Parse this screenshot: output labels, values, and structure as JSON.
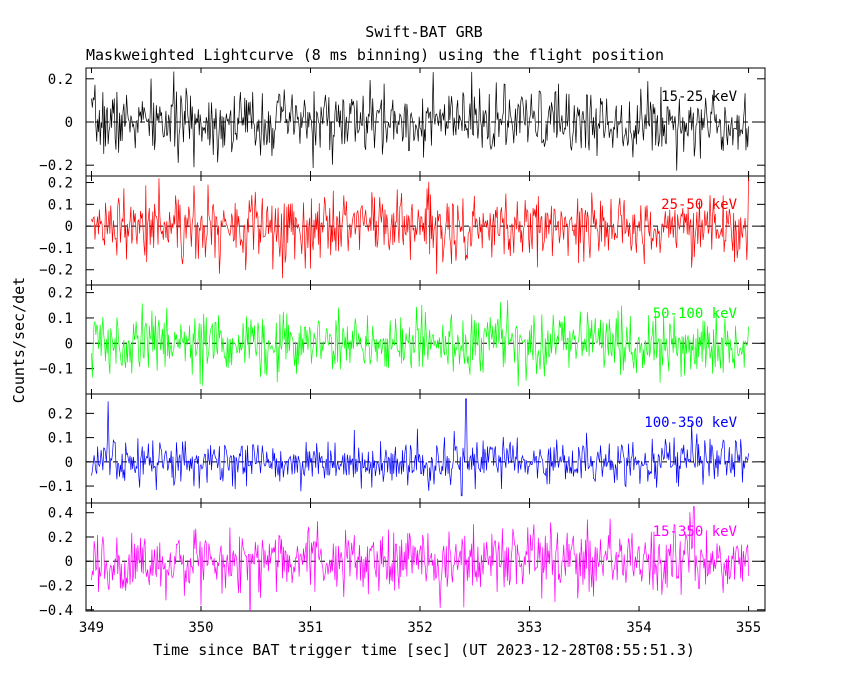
{
  "chart_data": {
    "type": "line",
    "title": "Swift-BAT GRB",
    "subtitle": "Maskweighted Lightcurve (8 ms binning) using the flight position",
    "xlabel": "Time since BAT trigger time [sec] (UT 2023-12-28T08:55:51.3)",
    "ylabel": "Counts/sec/det",
    "xlim": [
      348.95,
      355.15
    ],
    "x_ticks": [
      349,
      350,
      351,
      352,
      353,
      354,
      355
    ],
    "x_tick_labels": [
      "349",
      "350",
      "351",
      "352",
      "353",
      "354",
      "355"
    ],
    "x_range": [
      349.0,
      355.0
    ],
    "bin_width_s": 0.008,
    "grid": false,
    "zero_line": "dashed",
    "series": [
      {
        "name": "15-25 keV",
        "color": "#000000",
        "ylim": [
          -0.25,
          0.25
        ],
        "y_ticks": [
          -0.2,
          0,
          0.2
        ],
        "y_tick_labels": [
          "−0.2",
          "0",
          "0.2"
        ],
        "noise_sd": 0.075,
        "features": []
      },
      {
        "name": "25-50 keV",
        "color": "#ff0000",
        "ylim": [
          -0.27,
          0.23
        ],
        "y_ticks": [
          -0.2,
          -0.1,
          0,
          0.1,
          0.2
        ],
        "y_tick_labels": [
          "−0.2",
          "−0.1",
          "0",
          "0.1",
          "0.2"
        ],
        "noise_sd": 0.075,
        "features": [
          {
            "x": 352.15,
            "y": -0.22
          },
          {
            "x": 355.0,
            "y": 0.22
          }
        ]
      },
      {
        "name": "50-100 keV",
        "color": "#00ff00",
        "ylim": [
          -0.2,
          0.23
        ],
        "y_ticks": [
          -0.1,
          0,
          0.1,
          0.2
        ],
        "y_tick_labels": [
          "−0.1",
          "0",
          "0.1",
          "0.2"
        ],
        "noise_sd": 0.06,
        "features": []
      },
      {
        "name": "100-350 keV",
        "color": "#0000ff",
        "ylim": [
          -0.17,
          0.28
        ],
        "y_ticks": [
          -0.1,
          0,
          0.1,
          0.2
        ],
        "y_tick_labels": [
          "−0.1",
          "0",
          "0.1",
          "0.2"
        ],
        "noise_sd": 0.045,
        "features": [
          {
            "x": 349.15,
            "y": 0.25
          },
          {
            "x": 352.42,
            "y": 0.26
          },
          {
            "x": 352.38,
            "y": -0.14
          }
        ]
      },
      {
        "name": "15-350 keV",
        "color": "#ff00ff",
        "ylim": [
          -0.41,
          0.48
        ],
        "y_ticks": [
          -0.4,
          -0.2,
          0,
          0.2,
          0.4
        ],
        "y_tick_labels": [
          "−0.4",
          "−0.2",
          "0",
          "0.2",
          "0.4"
        ],
        "noise_sd": 0.13,
        "features": [
          {
            "x": 352.4,
            "y": -0.38
          },
          {
            "x": 354.5,
            "y": 0.45
          }
        ]
      }
    ]
  }
}
